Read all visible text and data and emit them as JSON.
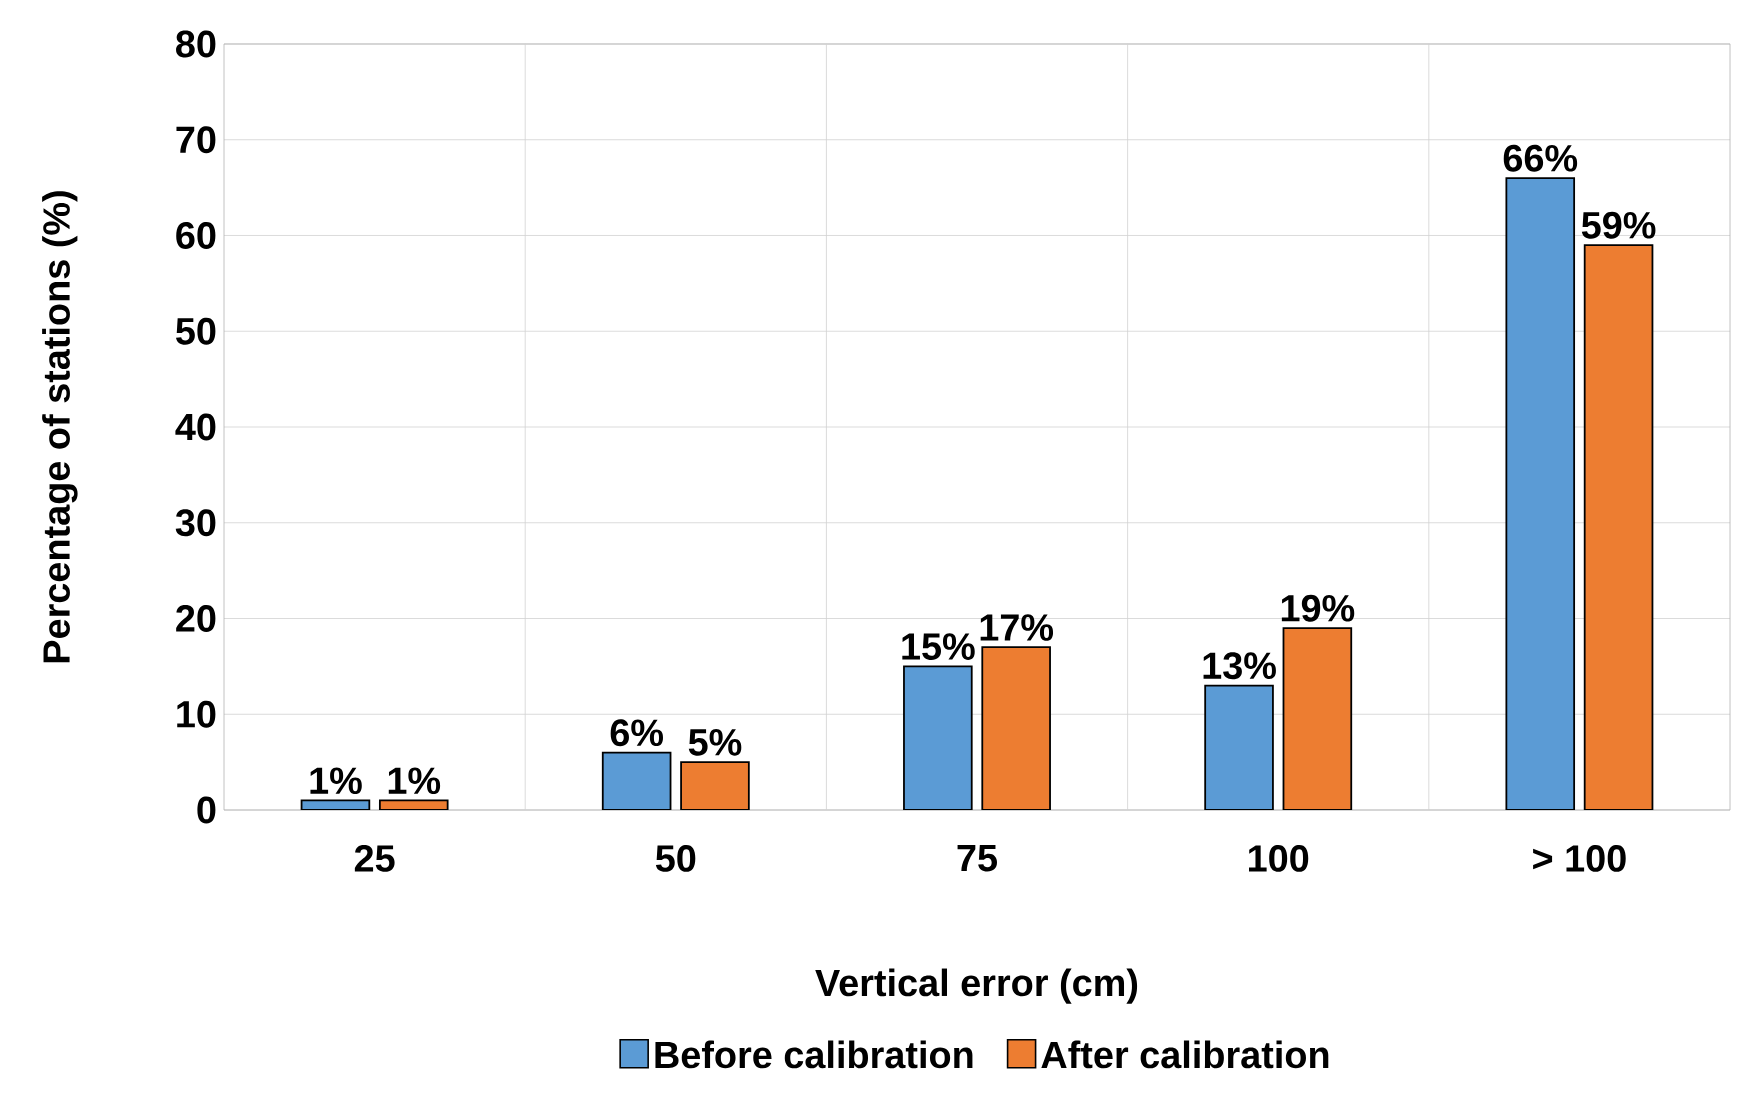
{
  "chart_data": {
    "type": "bar",
    "xlabel": "Vertical error (cm)",
    "ylabel": "Percentage of stations (%)",
    "categories": [
      "25",
      "50",
      "75",
      "100",
      "> 100"
    ],
    "series": [
      {
        "name": "Before calibration",
        "color": "#5b9bd5",
        "values": [
          1,
          6,
          15,
          13,
          66
        ],
        "value_labels": [
          "1%",
          "6%",
          "15%",
          "13%",
          "66%"
        ]
      },
      {
        "name": "After calibration",
        "color": "#ed7d31",
        "values": [
          1,
          5,
          17,
          19,
          59
        ],
        "value_labels": [
          "1%",
          "5%",
          "17%",
          "19%",
          "59%"
        ]
      }
    ],
    "ylim": [
      0,
      80
    ],
    "yticks": [
      0,
      10,
      20,
      30,
      40,
      50,
      60,
      70,
      80
    ],
    "grid": true,
    "legend": "bottom"
  }
}
